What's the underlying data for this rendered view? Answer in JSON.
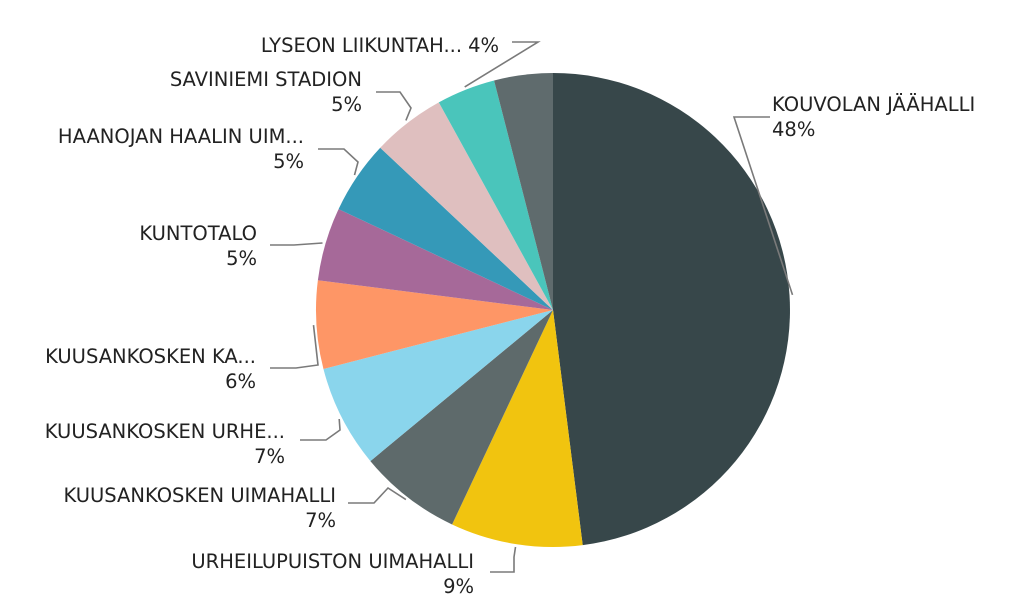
{
  "chart_data": {
    "type": "pie",
    "title": "",
    "start_angle_deg": 0,
    "direction": "clockwise",
    "legend": "none",
    "slices": [
      {
        "name": "KOUVOLAN JÄÄHALLI",
        "value_label": "48%",
        "value": 48,
        "color": "#37474a"
      },
      {
        "name": "URHEILUPUISTON UIMAHALLI",
        "value_label": "9%",
        "value": 9,
        "color": "#f1c40f"
      },
      {
        "name": "KUUSANKOSKEN UIMAHALLI",
        "value_label": "7%",
        "value": 7,
        "color": "#5e6a6b"
      },
      {
        "name": "KUUSANKOSKEN URHE...",
        "value_label": "7%",
        "value": 7,
        "color": "#8ad5ec"
      },
      {
        "name": "KUUSANKOSKEN KA...",
        "value_label": "6%",
        "value": 6,
        "color": "#fe9666"
      },
      {
        "name": "KUNTOTALO",
        "value_label": "5%",
        "value": 5,
        "color": "#a66999"
      },
      {
        "name": "HAANOJAN HAALIN UIM...",
        "value_label": "5%",
        "value": 5,
        "color": "#3599b8"
      },
      {
        "name": "SAVINIEMI STADION",
        "value_label": "5%",
        "value": 5,
        "color": "#dfbfbf"
      },
      {
        "name": "LYSEON LIIKUNTAH...",
        "value_label": "4%",
        "value": 4,
        "color": "#4ac5bb"
      },
      {
        "name": "",
        "value_label": "",
        "value": 4,
        "color": "#5f6b6d"
      }
    ]
  }
}
